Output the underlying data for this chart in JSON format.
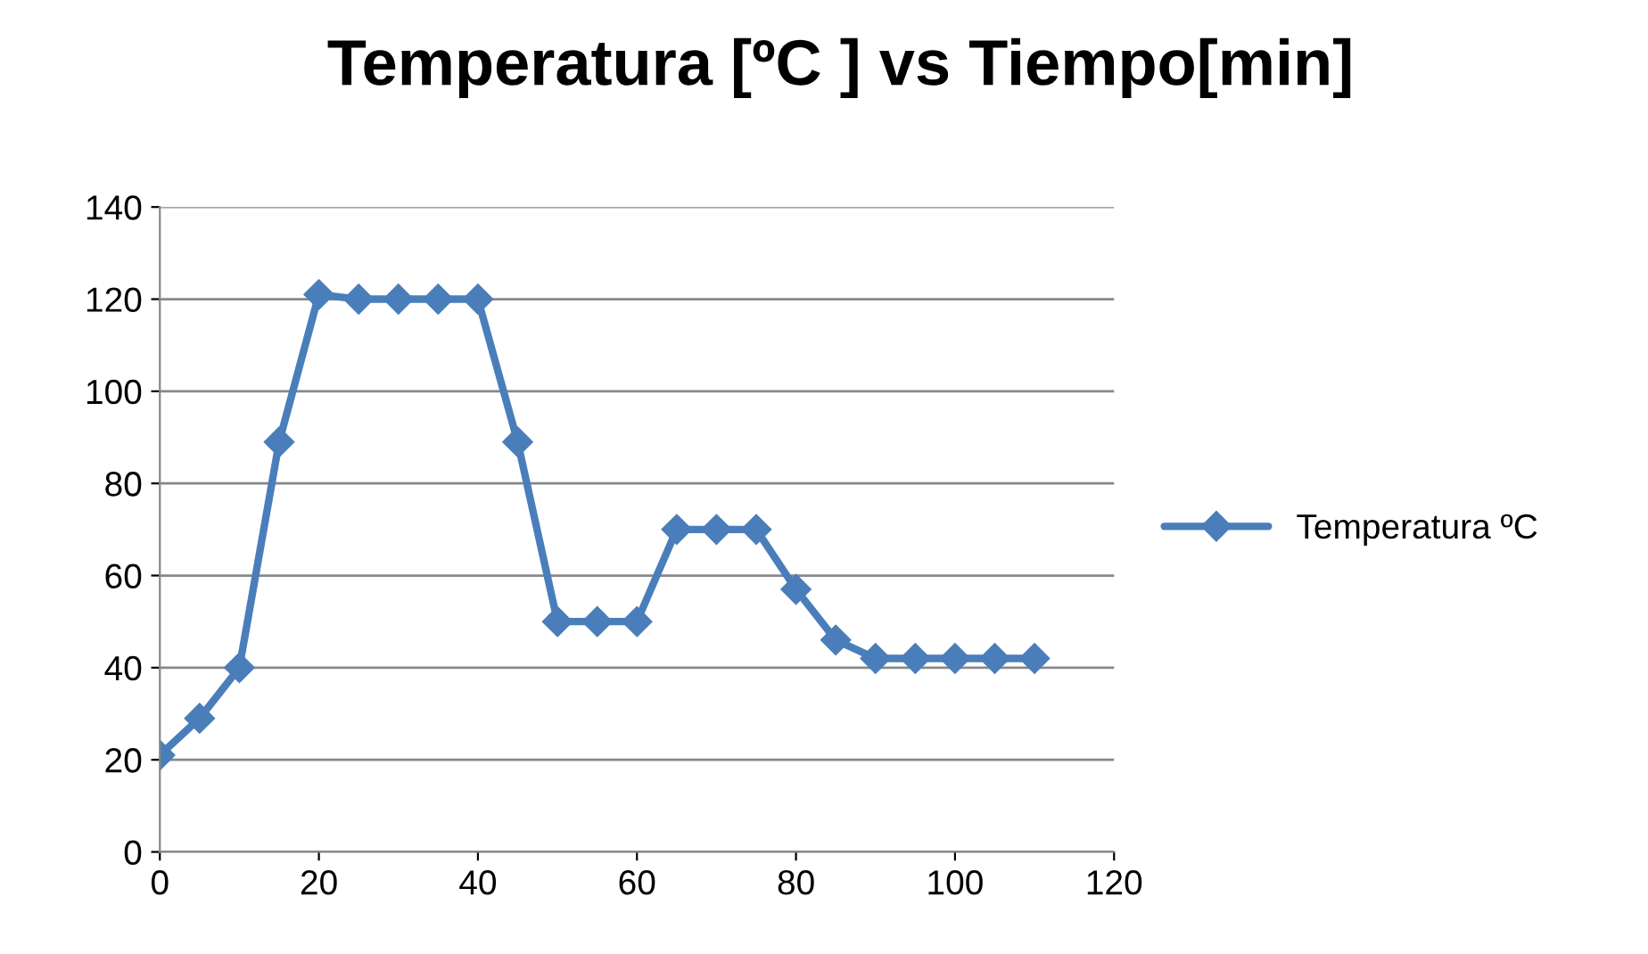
{
  "chart_data": {
    "type": "line",
    "title": "Temperatura [ºC ] vs Tiempo[min]",
    "x": [
      0,
      5,
      10,
      15,
      20,
      25,
      30,
      35,
      40,
      45,
      50,
      55,
      60,
      65,
      70,
      75,
      80,
      85,
      90,
      95,
      100,
      105,
      110
    ],
    "series": [
      {
        "name": "Temperatura ºC",
        "color": "#4a7ebb",
        "values": [
          21,
          29,
          40,
          89,
          121,
          120,
          120,
          120,
          120,
          89,
          50,
          50,
          50,
          70,
          70,
          70,
          57,
          46,
          42,
          42,
          42,
          42,
          42
        ]
      }
    ],
    "xlim": [
      0,
      120
    ],
    "xticks": [
      0,
      20,
      40,
      60,
      80,
      100,
      120
    ],
    "ylim": [
      0,
      140
    ],
    "yticks": [
      0,
      20,
      40,
      60,
      80,
      100,
      120,
      140
    ],
    "grid": "y",
    "legend": "right",
    "marker": "diamond",
    "line_style": "solid"
  }
}
